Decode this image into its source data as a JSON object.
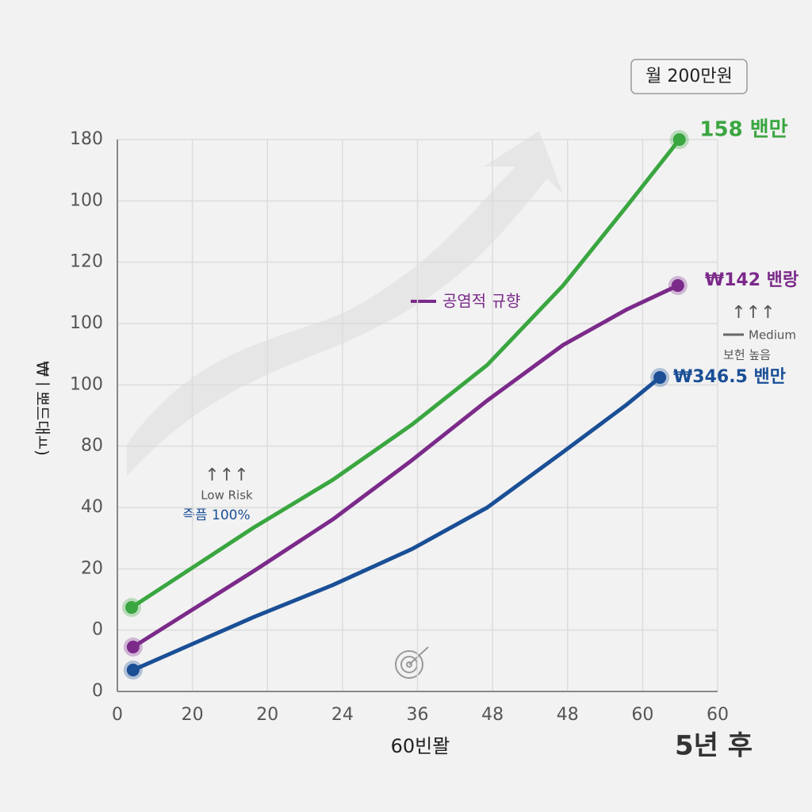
{
  "chart_data": {
    "type": "line",
    "badge": "월 200만원",
    "y_label": "₩ㅣ뽀드대ㅛ)",
    "x_label": "60빈뫌",
    "corner_label": "5년 후",
    "xlim": [
      0,
      80
    ],
    "xticks": [
      0,
      {
        "value": 10,
        "label": "20"
      },
      20,
      {
        "value": 30,
        "label": "24"
      },
      {
        "value": 40,
        "label": "36"
      },
      {
        "value": 50,
        "label": "48"
      },
      {
        "value": 60,
        "label": "48"
      },
      {
        "value": 70,
        "label": "60"
      },
      {
        "value": 80,
        "label": "60"
      }
    ],
    "ylim": [
      0,
      180
    ],
    "yticks": [
      0,
      {
        "value": 20,
        "label": "0"
      },
      {
        "value": 40,
        "label": "20"
      },
      {
        "value": 60,
        "label": "40"
      },
      80,
      100,
      {
        "value": 120,
        "label": "100"
      },
      {
        "value": 140,
        "label": "120"
      },
      {
        "value": 160,
        "label": "100"
      },
      180
    ],
    "grid": true,
    "series": [
      {
        "name": "158 밴만",
        "color": "#3aa640",
        "x": [
          1.9,
          18.2,
          28.7,
          39.3,
          49.3,
          59.4,
          67.9,
          74.9
        ],
        "values": [
          27.4,
          53.5,
          69.0,
          87.1,
          106.5,
          132.4,
          158.3,
          180.0
        ]
      },
      {
        "name": "₩142 밴랑",
        "color": "#7b2a8a",
        "x": [
          2.1,
          18.2,
          28.7,
          39.3,
          49.3,
          59.4,
          67.9,
          74.7
        ],
        "values": [
          14.5,
          39.3,
          56.1,
          75.5,
          94.9,
          113.0,
          124.6,
          132.4
        ]
      },
      {
        "name": "₩346.5 밴만",
        "color": "#1a4f96",
        "x": [
          2.1,
          18.2,
          28.7,
          39.3,
          49.3,
          59.4,
          67.9,
          72.3
        ],
        "values": [
          7.0,
          24.3,
          34.7,
          46.5,
          60.0,
          78.1,
          93.6,
          102.4
        ]
      }
    ],
    "legend_label": "공염적 규향",
    "annotations": {
      "medium_arrows": "↑↑↑",
      "medium": "Medium",
      "medium_note": "보헌 높음",
      "low_arrows": "↑↑↑",
      "low": "Low Risk",
      "low_note": "즉픔 100%"
    }
  }
}
